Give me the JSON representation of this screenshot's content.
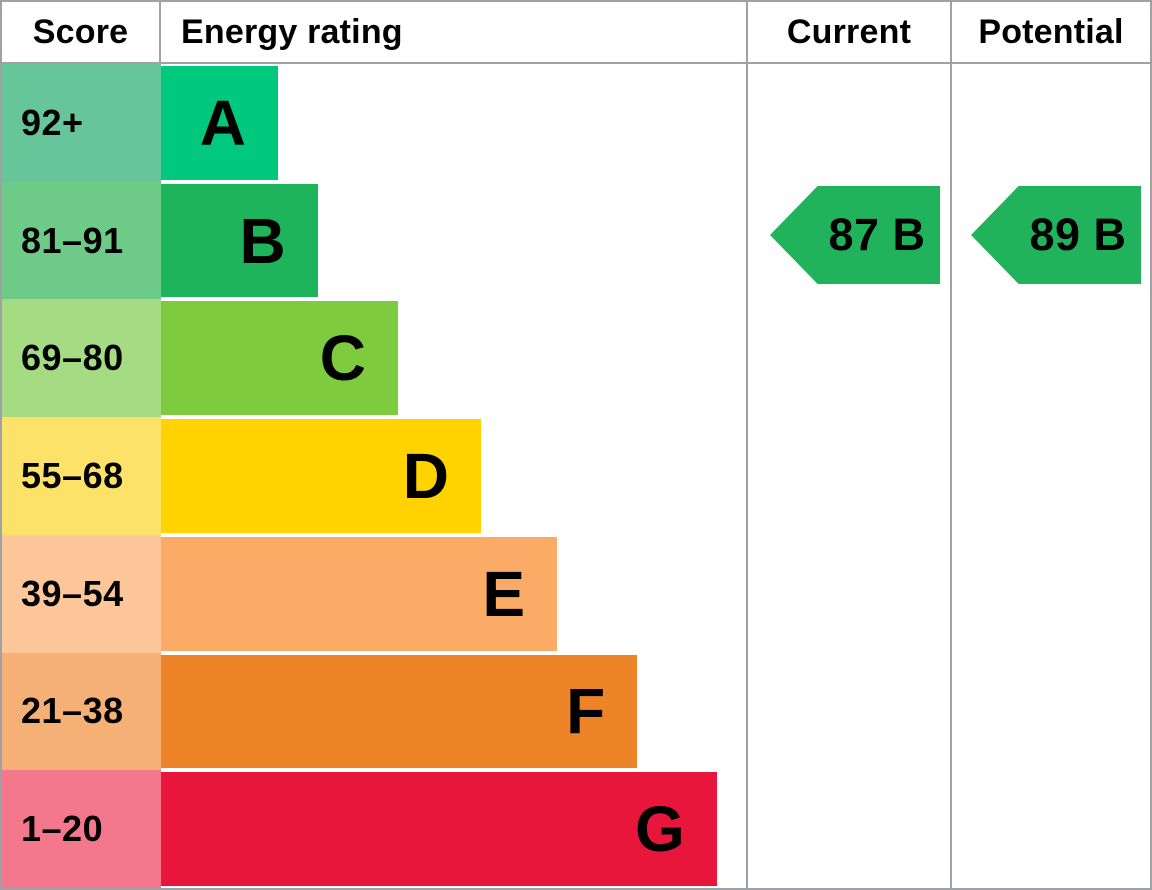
{
  "header": {
    "score_label": "Score",
    "energy_rating_label": "Energy rating",
    "current_label": "Current",
    "potential_label": "Potential"
  },
  "colors": {
    "border": "#a0a1a6",
    "arrow_green": "#21b35b",
    "text": "#000000"
  },
  "chart_data": {
    "type": "bar",
    "title": "EPC energy rating chart",
    "categories": [
      "A",
      "B",
      "C",
      "D",
      "E",
      "F",
      "G"
    ],
    "bands": [
      {
        "letter": "A",
        "score_range": "92+",
        "bar_pct": 20.0,
        "bar_color": "#00c97e",
        "score_bg": "#66c69a"
      },
      {
        "letter": "B",
        "score_range": "81–91",
        "bar_pct": 26.8,
        "bar_color": "#1eb45b",
        "score_bg": "#6ecb87"
      },
      {
        "letter": "C",
        "score_range": "69–80",
        "bar_pct": 40.5,
        "bar_color": "#7fcb3f",
        "score_bg": "#a5db83"
      },
      {
        "letter": "D",
        "score_range": "55–68",
        "bar_pct": 54.7,
        "bar_color": "#ffd200",
        "score_bg": "#fde26a"
      },
      {
        "letter": "E",
        "score_range": "39–54",
        "bar_pct": 67.7,
        "bar_color": "#fbab66",
        "score_bg": "#fec79a"
      },
      {
        "letter": "F",
        "score_range": "21–38",
        "bar_pct": 81.4,
        "bar_color": "#ee8428",
        "score_bg": "#f4b075"
      },
      {
        "letter": "G",
        "score_range": "1–20",
        "bar_pct": 95.0,
        "bar_color": "#e9163c",
        "score_bg": "#f4788c"
      }
    ],
    "current": {
      "value": 87,
      "band": "B",
      "label": "87 B"
    },
    "potential": {
      "value": 89,
      "band": "B",
      "label": "89 B"
    }
  }
}
